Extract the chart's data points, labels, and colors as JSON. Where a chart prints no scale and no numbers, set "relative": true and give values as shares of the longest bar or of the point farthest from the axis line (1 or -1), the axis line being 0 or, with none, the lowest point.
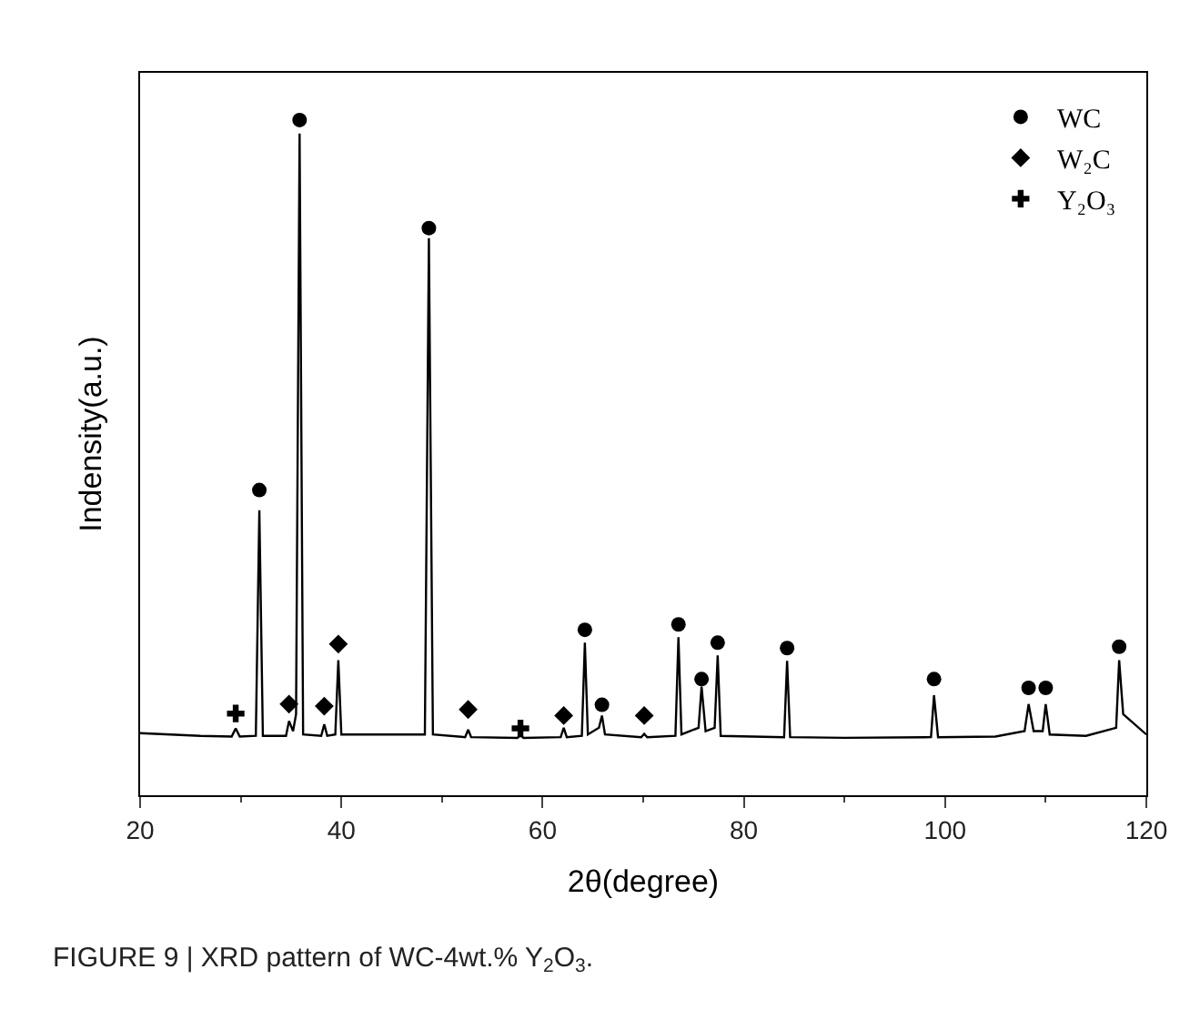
{
  "chart_data": {
    "type": "line",
    "relative": true,
    "xlabel": "2θ(degree)",
    "ylabel": "Indensity(a.u.)",
    "xlim": [
      20,
      120
    ],
    "xticks": [
      20,
      40,
      60,
      80,
      100,
      120
    ],
    "legend": "top right",
    "annotations": [
      "FIGURE 9 | XRD pattern of WC-4wt.% Y$_{2}$O$_{3}$."
    ],
    "series": [
      {
        "color": "#000000",
        "marker": "none",
        "line_style": "solid",
        "x": [
          20,
          23,
          26,
          29.1,
          29.5,
          29.9,
          31.5,
          31.85,
          32.2,
          34.5,
          34.8,
          35.2,
          35.5,
          35.85,
          36.2,
          38.0,
          38.3,
          38.6,
          39.4,
          39.7,
          40.0,
          48.3,
          48.7,
          49.1,
          52.3,
          52.6,
          52.9,
          57.5,
          57.8,
          58.1,
          61.8,
          62.1,
          62.4,
          63.9,
          64.2,
          64.5,
          65.6,
          65.9,
          66.2,
          69.8,
          70.1,
          70.4,
          73.2,
          73.5,
          73.8,
          75.5,
          75.8,
          76.2,
          77.1,
          77.4,
          77.7,
          84.0,
          84.3,
          84.6,
          90,
          98.6,
          98.9,
          99.3,
          105,
          107.9,
          108.3,
          108.8,
          109.7,
          110.0,
          110.4,
          114,
          117.0,
          117.3,
          117.7,
          120
        ],
        "values": [
          0.092,
          0.09,
          0.088,
          0.087,
          0.099,
          0.087,
          0.088,
          0.422,
          0.088,
          0.088,
          0.11,
          0.095,
          0.12,
          0.98,
          0.09,
          0.088,
          0.105,
          0.088,
          0.09,
          0.2,
          0.09,
          0.09,
          0.825,
          0.09,
          0.086,
          0.097,
          0.086,
          0.085,
          0.089,
          0.085,
          0.086,
          0.1,
          0.086,
          0.088,
          0.226,
          0.09,
          0.1,
          0.118,
          0.09,
          0.086,
          0.091,
          0.086,
          0.088,
          0.234,
          0.09,
          0.1,
          0.161,
          0.095,
          0.1,
          0.207,
          0.088,
          0.086,
          0.199,
          0.086,
          0.085,
          0.086,
          0.148,
          0.086,
          0.087,
          0.095,
          0.135,
          0.095,
          0.095,
          0.135,
          0.09,
          0.088,
          0.1,
          0.2,
          0.12,
          0.09
        ]
      },
      {
        "type": "scatter",
        "name": "WC",
        "color": "#000000",
        "marker": "circle",
        "x": [
          31.85,
          35.85,
          48.7,
          64.2,
          65.9,
          73.5,
          75.8,
          77.4,
          84.3,
          98.9,
          108.3,
          110.0,
          117.3
        ],
        "values": [
          0.452,
          1.0,
          0.84,
          0.245,
          0.134,
          0.253,
          0.172,
          0.226,
          0.218,
          0.172,
          0.159,
          0.159,
          0.22
        ]
      },
      {
        "type": "scatter",
        "name": "W₂C",
        "color": "#000000",
        "marker": "diamond",
        "x": [
          34.8,
          38.3,
          39.7,
          52.6,
          62.1,
          70.1
        ],
        "values": [
          0.135,
          0.132,
          0.224,
          0.127,
          0.118,
          0.118
        ]
      },
      {
        "type": "scatter",
        "name": "Y₂O₃",
        "color": "#000000",
        "marker": "cross",
        "x": [
          29.5,
          57.8
        ],
        "values": [
          0.121,
          0.099
        ]
      }
    ]
  }
}
